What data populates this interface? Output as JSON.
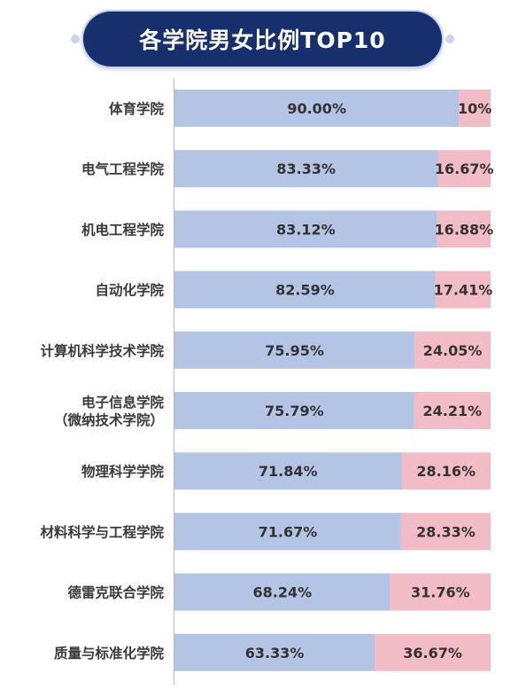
{
  "title": "各学院男女比例TOP10",
  "colors": {
    "banner": "#17306d",
    "male_bar": "#b3c4e4",
    "female_bar": "#f2bcc6"
  },
  "chart_data": {
    "type": "bar",
    "orientation": "horizontal",
    "stacked": true,
    "normalized_100": true,
    "categories": [
      [
        "体育学院"
      ],
      [
        "电气工程学院"
      ],
      [
        "机电工程学院"
      ],
      [
        "自动化学院"
      ],
      [
        "计算机科学技术学院"
      ],
      [
        "电子信息学院",
        "（微纳技术学院）"
      ],
      [
        "物理科学学院"
      ],
      [
        "材料科学与工程学院"
      ],
      [
        "德雷克联合学院"
      ],
      [
        "质量与标准化学院"
      ]
    ],
    "series": [
      {
        "values": [
          90.0,
          83.33,
          83.12,
          82.59,
          75.95,
          75.79,
          71.84,
          71.67,
          68.24,
          63.33
        ],
        "labels": [
          "90.00%",
          "83.33%",
          "83.12%",
          "82.59%",
          "75.95%",
          "75.79%",
          "71.84%",
          "71.67%",
          "68.24%",
          "63.33%"
        ]
      },
      {
        "values": [
          10.0,
          16.67,
          16.88,
          17.41,
          24.05,
          24.21,
          28.16,
          28.33,
          31.76,
          36.67
        ],
        "labels": [
          "10%",
          "16.67%",
          "16.88%",
          "17.41%",
          "24.05%",
          "24.21%",
          "28.16%",
          "28.33%",
          "31.76%",
          "36.67%"
        ]
      }
    ],
    "xlim": [
      0,
      100
    ],
    "legend": "none",
    "grid": false
  }
}
